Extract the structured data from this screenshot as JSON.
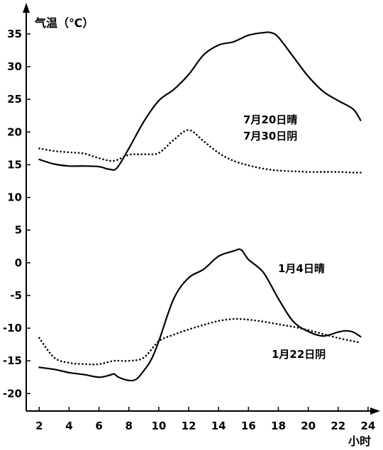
{
  "chart_data": {
    "type": "line",
    "ylabel": "气温（℃）",
    "xlabel": "小时",
    "xlim": [
      0.8,
      25
    ],
    "ylim": [
      -23,
      39
    ],
    "x_ticks": [
      2,
      4,
      6,
      8,
      10,
      12,
      14,
      16,
      18,
      20,
      22,
      24
    ],
    "y_ticks": [
      35,
      30,
      25,
      20,
      15,
      10,
      5,
      0,
      -5,
      -10,
      -15,
      -20
    ],
    "grid": false,
    "series": [
      {
        "name": "7月20日晴",
        "style": "solid",
        "x": [
          2,
          3,
          4,
          5,
          6,
          6.7,
          7.2,
          8,
          9,
          10,
          11,
          12,
          13,
          14,
          15,
          16,
          17,
          17.5,
          18,
          19,
          20,
          21,
          22,
          23,
          23.5
        ],
        "y": [
          15.8,
          15.1,
          14.8,
          14.8,
          14.7,
          14.3,
          14.5,
          17.5,
          21.6,
          24.8,
          26.5,
          28.8,
          31.8,
          33.3,
          33.8,
          34.8,
          35.2,
          35.2,
          34.5,
          31.5,
          28.5,
          26.2,
          24.8,
          23.5,
          21.8
        ]
      },
      {
        "name": "7月30日阴",
        "style": "dotted",
        "x": [
          2,
          3,
          4,
          5,
          6,
          7,
          8,
          9,
          10,
          11,
          12,
          13,
          14,
          15,
          16,
          17,
          18,
          19,
          20,
          21,
          22,
          23,
          23.5
        ],
        "y": [
          17.5,
          17.1,
          16.9,
          16.7,
          16.0,
          15.6,
          16.5,
          16.6,
          16.8,
          18.8,
          20.3,
          18.6,
          16.8,
          15.6,
          14.9,
          14.4,
          14.1,
          14.0,
          13.9,
          13.9,
          13.9,
          13.8,
          13.8
        ]
      },
      {
        "name": "1月4日晴",
        "style": "solid",
        "x": [
          2,
          3,
          4,
          5,
          6,
          6.7,
          7,
          7.3,
          8,
          8.5,
          9,
          9.5,
          10,
          11,
          12,
          13,
          14,
          15,
          15.5,
          16,
          17,
          18,
          19,
          20,
          21,
          22,
          22.5,
          23,
          23.5
        ],
        "y": [
          -16.0,
          -16.3,
          -16.8,
          -17.1,
          -17.5,
          -17.2,
          -17.0,
          -17.5,
          -18.0,
          -17.8,
          -16.5,
          -14.8,
          -12.0,
          -5.5,
          -2.3,
          -1.0,
          1.0,
          1.8,
          2.0,
          0.5,
          -1.5,
          -5.5,
          -9.0,
          -10.5,
          -11.2,
          -10.6,
          -10.4,
          -10.6,
          -11.3
        ]
      },
      {
        "name": "1月22日阴",
        "style": "dotted",
        "x": [
          2,
          3,
          4,
          5,
          6,
          7,
          8,
          9,
          10,
          11,
          12,
          13,
          14,
          15,
          16,
          17,
          18,
          19,
          20,
          21,
          22,
          23,
          23.5
        ],
        "y": [
          -11.5,
          -14.5,
          -15.3,
          -15.5,
          -15.5,
          -15.0,
          -15.0,
          -14.5,
          -12.0,
          -11.0,
          -10.2,
          -9.5,
          -8.9,
          -8.6,
          -8.7,
          -9.0,
          -9.4,
          -9.8,
          -10.3,
          -10.9,
          -11.5,
          -12.0,
          -12.2
        ]
      }
    ],
    "annotations": [
      "7月20日晴",
      "7月30日阴",
      "1月4日晴",
      "1月22日阴"
    ]
  }
}
